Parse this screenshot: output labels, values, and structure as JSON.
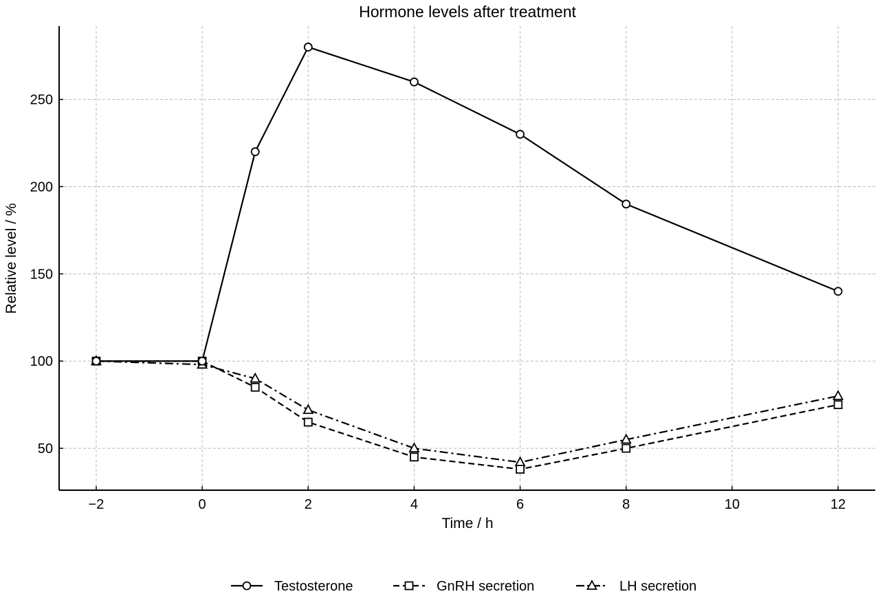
{
  "chart_data": {
    "type": "line",
    "title": "Hormone levels after treatment",
    "xlabel": "Time / h",
    "ylabel": "Relative level / %",
    "xlim": [
      -2.7,
      12.7
    ],
    "ylim": [
      26,
      292
    ],
    "xticks": [
      -2,
      0,
      2,
      4,
      6,
      8,
      10,
      12
    ],
    "xtick_labels": [
      "−2",
      "0",
      "2",
      "4",
      "6",
      "8",
      "10",
      "12"
    ],
    "yticks": [
      50,
      100,
      150,
      200,
      250
    ],
    "yticks_labels": [
      "50",
      "100",
      "150",
      "200",
      "250"
    ],
    "grid": true,
    "legend_position": "bottom-center",
    "series": [
      {
        "name": "Testosterone",
        "marker": "circle",
        "line_style": "solid",
        "color": "#000000",
        "x": [
          -2,
          0,
          1,
          2,
          4,
          6,
          8,
          12
        ],
        "y": [
          100,
          100,
          220,
          280,
          260,
          230,
          190,
          140
        ]
      },
      {
        "name": "GnRH secretion",
        "marker": "square",
        "line_style": "dashed",
        "color": "#000000",
        "x": [
          -2,
          0,
          1,
          2,
          4,
          6,
          8,
          12
        ],
        "y": [
          100,
          100,
          85,
          65,
          45,
          38,
          50,
          75
        ]
      },
      {
        "name": "LH secretion",
        "marker": "triangle",
        "line_style": "dashdot",
        "color": "#000000",
        "x": [
          -2,
          0,
          1,
          2,
          4,
          6,
          8,
          12
        ],
        "y": [
          100,
          98,
          90,
          72,
          50,
          42,
          55,
          80
        ]
      }
    ]
  }
}
